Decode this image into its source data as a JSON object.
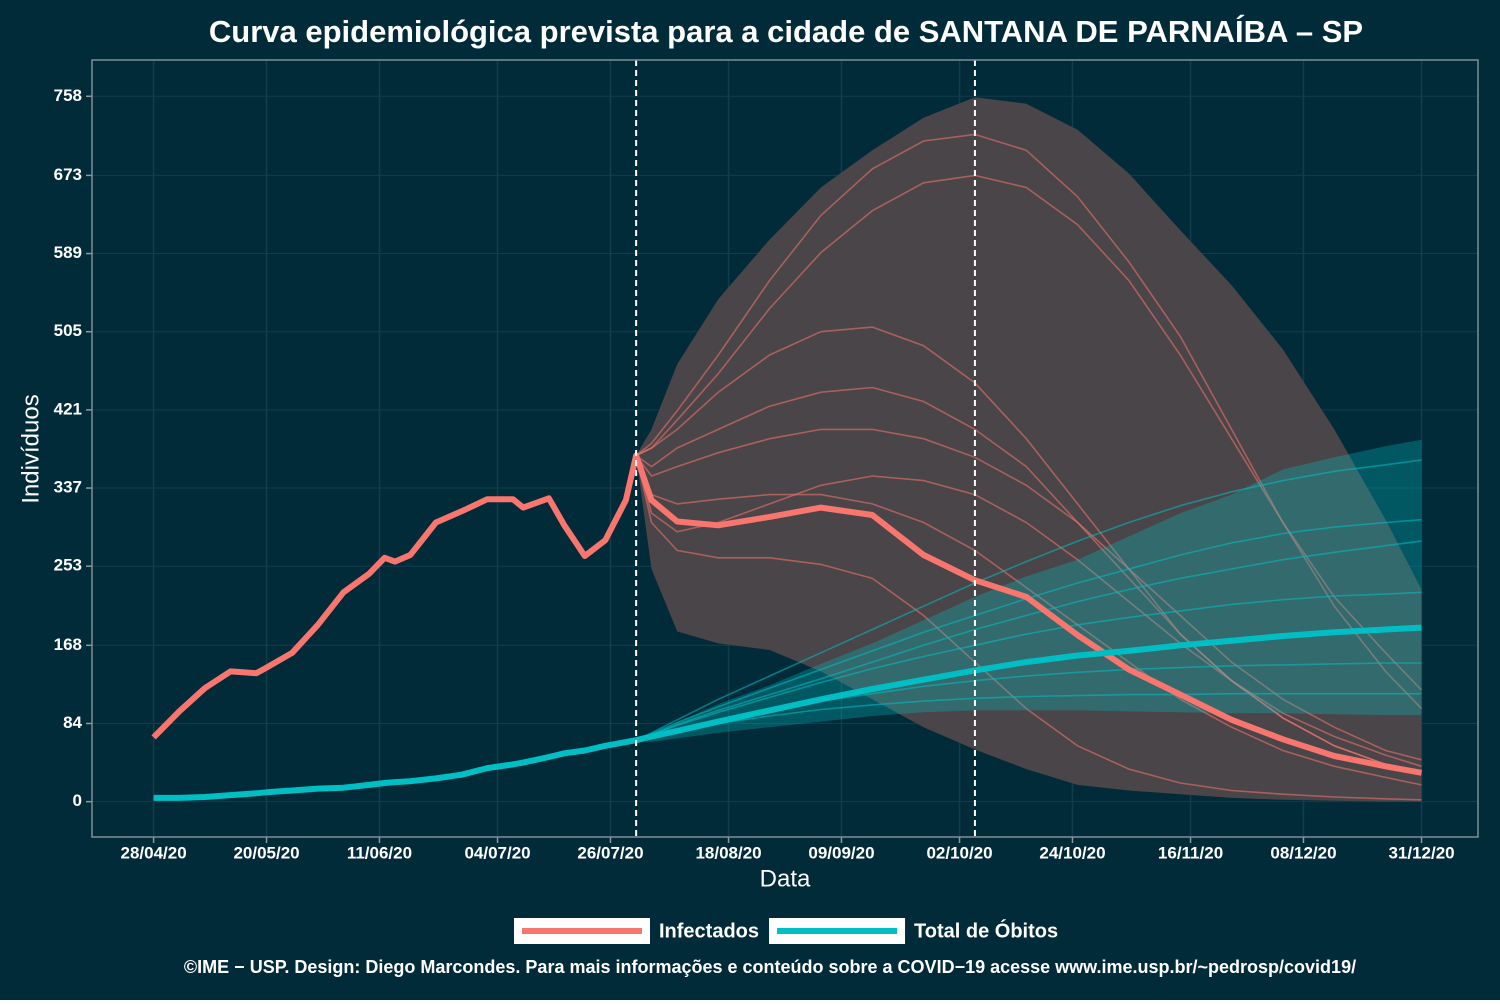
{
  "chart_data": {
    "type": "line",
    "title": "Curva epidemiológica prevista para a cidade de SANTANA DE PARNAÍBA – SP",
    "x_label": "Data",
    "y_label": "Indivíduos",
    "caption": "©IME − USP. Design: Diego Marcondes. Para mais informações e conteúdo sobre a COVID−19 acesse www.ime.usp.br/~pedrosp/covid19/",
    "background": "#022b3a",
    "grid_color": "#123d4c",
    "x": [
      "28/04/20",
      "03/05/20",
      "08/05/20",
      "13/05/20",
      "18/05/20",
      "20/05/20",
      "25/05/20",
      "30/05/20",
      "04/06/20",
      "09/06/20",
      "12/06/20",
      "14/06/20",
      "17/06/20",
      "22/06/20",
      "27/06/20",
      "02/07/20",
      "07/07/20",
      "09/07/20",
      "14/07/20",
      "17/07/20",
      "21/07/20",
      "25/07/20",
      "29/07/20",
      "31/07/20",
      "03/08/20",
      "08/08/20",
      "16/08/20",
      "26/08/20",
      "05/09/20",
      "15/09/20",
      "25/09/20",
      "05/10/20",
      "15/10/20",
      "25/10/20",
      "04/11/20",
      "14/11/20",
      "24/11/20",
      "04/12/20",
      "14/12/20",
      "24/12/20",
      "31/12/20"
    ],
    "xlim": [
      "16/04/20",
      "11/01/21"
    ],
    "xticks": [
      "28/04/20",
      "20/05/20",
      "11/06/20",
      "04/07/20",
      "26/07/20",
      "18/08/20",
      "09/09/20",
      "02/10/20",
      "24/10/20",
      "16/11/20",
      "08/12/20",
      "31/12/20"
    ],
    "ylim": [
      -38,
      797
    ],
    "yticks": [
      0,
      84,
      168,
      253,
      337,
      421,
      505,
      589,
      673,
      758
    ],
    "vlines": [
      "31/07/20",
      "05/10/20"
    ],
    "projection_x": [
      "31/07/20",
      "03/08/20",
      "08/08/20",
      "16/08/20",
      "26/08/20",
      "05/09/20",
      "15/09/20",
      "25/09/20",
      "05/10/20",
      "15/10/20",
      "25/10/20",
      "04/11/20",
      "14/11/20",
      "24/11/20",
      "04/12/20",
      "14/12/20",
      "24/12/20",
      "31/12/20"
    ],
    "series": [
      {
        "name": "Infectados",
        "color": "#f8766d",
        "band_color": "#4a4549",
        "band_opacity": 1,
        "values": [
          69,
          97,
          122,
          140,
          138,
          144,
          160,
          190,
          225,
          245,
          262,
          258,
          265,
          300,
          312,
          325,
          325,
          316,
          326,
          297,
          264,
          281,
          324,
          372,
          324,
          301,
          297,
          306,
          316,
          308,
          265,
          238,
          220,
          179,
          142,
          115,
          88,
          67,
          49,
          38,
          31
        ],
        "band": {
          "upper": [
            372,
            400,
            470,
            540,
            604,
            660,
            700,
            735,
            757,
            750,
            722,
            675,
            614,
            555,
            486,
            400,
            303,
            228
          ],
          "lower": [
            372,
            250,
            183,
            170,
            163,
            140,
            110,
            80,
            56,
            35,
            18,
            12,
            8,
            4,
            2,
            1,
            0,
            0
          ]
        },
        "simulations": [
          [
            372,
            385,
            420,
            480,
            560,
            630,
            680,
            710,
            717,
            700,
            650,
            580,
            500,
            400,
            300,
            210,
            140,
            100
          ],
          [
            372,
            380,
            410,
            460,
            530,
            590,
            635,
            665,
            673,
            660,
            620,
            560,
            480,
            390,
            300,
            220,
            160,
            120
          ],
          [
            372,
            380,
            400,
            440,
            480,
            505,
            510,
            490,
            450,
            390,
            320,
            250,
            180,
            130,
            90,
            60,
            40,
            30
          ],
          [
            372,
            360,
            380,
            400,
            425,
            440,
            445,
            430,
            400,
            360,
            300,
            240,
            180,
            130,
            90,
            60,
            40,
            30
          ],
          [
            372,
            350,
            360,
            375,
            390,
            400,
            400,
            390,
            370,
            340,
            300,
            250,
            200,
            150,
            110,
            80,
            55,
            45
          ],
          [
            372,
            300,
            270,
            262,
            262,
            255,
            240,
            200,
            150,
            100,
            60,
            35,
            20,
            12,
            8,
            5,
            3,
            2
          ],
          [
            372,
            330,
            320,
            325,
            330,
            330,
            320,
            300,
            270,
            230,
            190,
            150,
            110,
            80,
            55,
            38,
            26,
            18
          ],
          [
            372,
            310,
            290,
            300,
            320,
            340,
            350,
            345,
            330,
            300,
            260,
            215,
            170,
            130,
            95,
            70,
            50,
            38
          ]
        ]
      },
      {
        "name": "Total de Óbitos",
        "color": "#00bfc4",
        "band_color": "#00bfc4",
        "band_opacity": 0.3,
        "values": [
          4,
          4,
          5,
          7,
          9,
          10,
          12,
          14,
          15,
          18,
          20,
          21,
          22,
          25,
          29,
          36,
          40,
          42,
          48,
          52,
          55,
          60,
          64,
          66,
          70,
          76,
          86,
          98,
          110,
          121,
          131,
          141,
          150,
          157,
          162,
          168,
          173,
          178,
          182,
          185,
          187
        ],
        "band": {
          "upper": [
            66,
            73,
            85,
            105,
            125,
            148,
            170,
            195,
            220,
            242,
            260,
            285,
            310,
            330,
            357,
            370,
            382,
            389
          ],
          "lower": [
            66,
            64,
            68,
            74,
            80,
            86,
            92,
            96,
            98,
            98,
            98,
            97,
            96,
            95,
            95,
            94,
            93,
            93
          ]
        },
        "simulations": [
          [
            66,
            74,
            88,
            110,
            135,
            160,
            185,
            210,
            235,
            258,
            280,
            300,
            318,
            333,
            345,
            355,
            362,
            367
          ],
          [
            66,
            73,
            85,
            102,
            122,
            142,
            162,
            182,
            200,
            218,
            235,
            250,
            265,
            278,
            288,
            295,
            300,
            303
          ],
          [
            66,
            72,
            82,
            96,
            112,
            128,
            143,
            156,
            168,
            180,
            190,
            198,
            205,
            212,
            217,
            221,
            223,
            225
          ],
          [
            66,
            71,
            78,
            88,
            98,
            108,
            116,
            124,
            130,
            135,
            139,
            142,
            144,
            146,
            147,
            148,
            149,
            149
          ],
          [
            66,
            70,
            76,
            84,
            92,
            99,
            104,
            108,
            111,
            113,
            114,
            115,
            115,
            116,
            116,
            116,
            116,
            116
          ],
          [
            66,
            72,
            83,
            98,
            115,
            132,
            150,
            168,
            185,
            200,
            215,
            228,
            240,
            250,
            260,
            268,
            275,
            280
          ]
        ]
      }
    ]
  }
}
